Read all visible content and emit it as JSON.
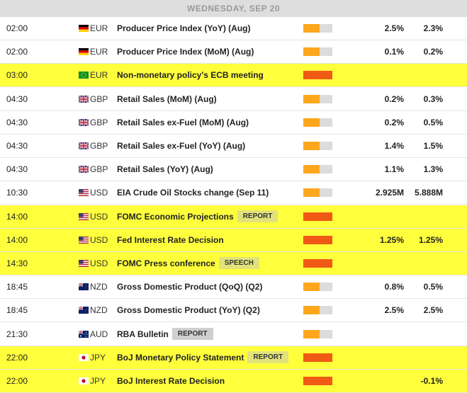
{
  "day_label": "WEDNESDAY, SEP 20",
  "colors": {
    "highlight": "#ffff3c",
    "impact_high": "#f05a14",
    "impact_medium": "#fca71e",
    "impact_track": "#dcdcdc"
  },
  "events": [
    {
      "time": "02:00",
      "flag": "de-flag-icon",
      "currency": "EUR",
      "name": "Producer Price Index (YoY) (Aug)",
      "tag": "",
      "impact": "medium",
      "impact_level": 0.55,
      "value1": "2.5%",
      "value2": "2.3%",
      "highlight": false
    },
    {
      "time": "02:00",
      "flag": "de-flag-icon",
      "currency": "EUR",
      "name": "Producer Price Index (MoM) (Aug)",
      "tag": "",
      "impact": "medium",
      "impact_level": 0.55,
      "value1": "0.1%",
      "value2": "0.2%",
      "highlight": false
    },
    {
      "time": "03:00",
      "flag": "eu-flag-icon",
      "currency": "EUR",
      "name": "Non-monetary policy's ECB meeting",
      "tag": "",
      "impact": "high",
      "impact_level": 1.0,
      "value1": "",
      "value2": "",
      "highlight": true
    },
    {
      "time": "04:30",
      "flag": "gb-flag-icon",
      "currency": "GBP",
      "name": "Retail Sales (MoM) (Aug)",
      "tag": "",
      "impact": "medium",
      "impact_level": 0.55,
      "value1": "0.2%",
      "value2": "0.3%",
      "highlight": false
    },
    {
      "time": "04:30",
      "flag": "gb-flag-icon",
      "currency": "GBP",
      "name": "Retail Sales ex-Fuel (MoM) (Aug)",
      "tag": "",
      "impact": "medium",
      "impact_level": 0.55,
      "value1": "0.2%",
      "value2": "0.5%",
      "highlight": false
    },
    {
      "time": "04:30",
      "flag": "gb-flag-icon",
      "currency": "GBP",
      "name": "Retail Sales ex-Fuel (YoY) (Aug)",
      "tag": "",
      "impact": "medium",
      "impact_level": 0.55,
      "value1": "1.4%",
      "value2": "1.5%",
      "highlight": false
    },
    {
      "time": "04:30",
      "flag": "gb-flag-icon",
      "currency": "GBP",
      "name": "Retail Sales (YoY) (Aug)",
      "tag": "",
      "impact": "medium",
      "impact_level": 0.55,
      "value1": "1.1%",
      "value2": "1.3%",
      "highlight": false
    },
    {
      "time": "10:30",
      "flag": "us-flag-icon",
      "currency": "USD",
      "name": "EIA Crude Oil Stocks change (Sep 11)",
      "tag": "",
      "impact": "medium",
      "impact_level": 0.55,
      "value1": "2.925M",
      "value2": "5.888M",
      "highlight": false
    },
    {
      "time": "14:00",
      "flag": "us-flag-icon",
      "currency": "USD",
      "name": "FOMC Economic Projections",
      "tag": "REPORT",
      "impact": "high",
      "impact_level": 1.0,
      "value1": "",
      "value2": "",
      "highlight": true
    },
    {
      "time": "14:00",
      "flag": "us-flag-icon",
      "currency": "USD",
      "name": "Fed Interest Rate Decision",
      "tag": "",
      "impact": "high",
      "impact_level": 1.0,
      "value1": "1.25%",
      "value2": "1.25%",
      "highlight": true
    },
    {
      "time": "14:30",
      "flag": "us-flag-icon",
      "currency": "USD",
      "name": "FOMC Press conference",
      "tag": "SPEECH",
      "impact": "high",
      "impact_level": 1.0,
      "value1": "",
      "value2": "",
      "highlight": true
    },
    {
      "time": "18:45",
      "flag": "nz-flag-icon",
      "currency": "NZD",
      "name": "Gross Domestic Product (QoQ) (Q2)",
      "tag": "",
      "impact": "medium",
      "impact_level": 0.55,
      "value1": "0.8%",
      "value2": "0.5%",
      "highlight": false
    },
    {
      "time": "18:45",
      "flag": "nz-flag-icon",
      "currency": "NZD",
      "name": "Gross Domestic Product (YoY) (Q2)",
      "tag": "",
      "impact": "medium",
      "impact_level": 0.55,
      "value1": "2.5%",
      "value2": "2.5%",
      "highlight": false
    },
    {
      "time": "21:30",
      "flag": "au-flag-icon",
      "currency": "AUD",
      "name": "RBA Bulletin",
      "tag": "REPORT",
      "impact": "medium",
      "impact_level": 0.55,
      "value1": "",
      "value2": "",
      "highlight": false
    },
    {
      "time": "22:00",
      "flag": "jp-flag-icon",
      "currency": "JPY",
      "name": "BoJ Monetary Policy Statement",
      "tag": "REPORT",
      "impact": "high",
      "impact_level": 1.0,
      "value1": "",
      "value2": "",
      "highlight": true
    },
    {
      "time": "22:00",
      "flag": "jp-flag-icon",
      "currency": "JPY",
      "name": "BoJ Interest Rate Decision",
      "tag": "",
      "impact": "high",
      "impact_level": 1.0,
      "value1": "",
      "value2": "-0.1%",
      "highlight": true
    }
  ]
}
